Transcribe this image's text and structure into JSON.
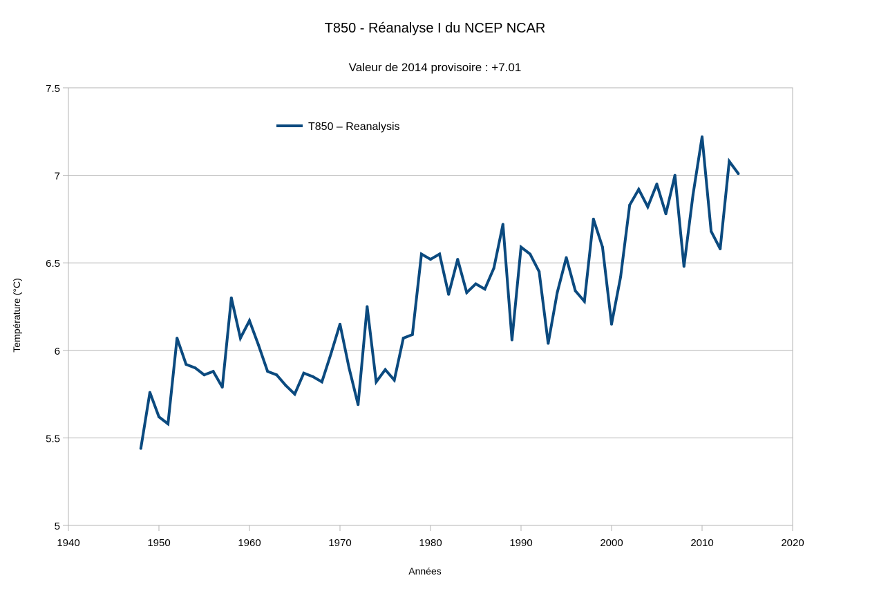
{
  "chart_data": {
    "type": "line",
    "title": "T850 - Réanalyse I du NCEP NCAR",
    "subtitle": "Valeur de 2014 provisoire : +7.01",
    "xlabel": "Années",
    "ylabel": "Température (°C)",
    "xlim": [
      1940,
      2020
    ],
    "ylim": [
      5,
      7.5
    ],
    "x_ticks": [
      "1940",
      "1950",
      "1960",
      "1970",
      "1980",
      "1990",
      "2000",
      "2010",
      "2020"
    ],
    "y_ticks": [
      "5",
      "5.5",
      "6",
      "6.5",
      "7",
      "7.5"
    ],
    "grid": "horizontal",
    "legend_position": "top-left",
    "series": [
      {
        "name": "T850 – Reanalysis",
        "color": "#0b4a7f",
        "x": [
          1948,
          1949,
          1950,
          1951,
          1952,
          1953,
          1954,
          1955,
          1956,
          1957,
          1958,
          1959,
          1960,
          1961,
          1962,
          1963,
          1964,
          1965,
          1966,
          1967,
          1968,
          1969,
          1970,
          1971,
          1972,
          1973,
          1974,
          1975,
          1976,
          1977,
          1978,
          1979,
          1980,
          1981,
          1982,
          1983,
          1984,
          1985,
          1986,
          1987,
          1988,
          1989,
          1990,
          1991,
          1992,
          1993,
          1994,
          1995,
          1996,
          1997,
          1998,
          1999,
          2000,
          2001,
          2002,
          2003,
          2004,
          2005,
          2006,
          2007,
          2008,
          2009,
          2010,
          2011,
          2012,
          2013,
          2014
        ],
        "values": [
          5.44,
          5.76,
          5.62,
          5.58,
          6.07,
          5.92,
          5.9,
          5.86,
          5.88,
          5.79,
          6.3,
          6.07,
          6.17,
          6.03,
          5.88,
          5.86,
          5.8,
          5.75,
          5.87,
          5.85,
          5.82,
          5.98,
          6.15,
          5.9,
          5.69,
          6.25,
          5.82,
          5.89,
          5.83,
          6.07,
          6.09,
          6.55,
          6.52,
          6.55,
          6.32,
          6.52,
          6.33,
          6.38,
          6.35,
          6.47,
          6.72,
          6.06,
          6.59,
          6.55,
          6.45,
          6.04,
          6.33,
          6.53,
          6.34,
          6.28,
          6.75,
          6.59,
          6.15,
          6.42,
          6.83,
          6.92,
          6.82,
          6.95,
          6.78,
          7.0,
          6.48,
          6.89,
          7.22,
          6.68,
          6.58,
          7.08,
          7.01
        ]
      }
    ]
  }
}
